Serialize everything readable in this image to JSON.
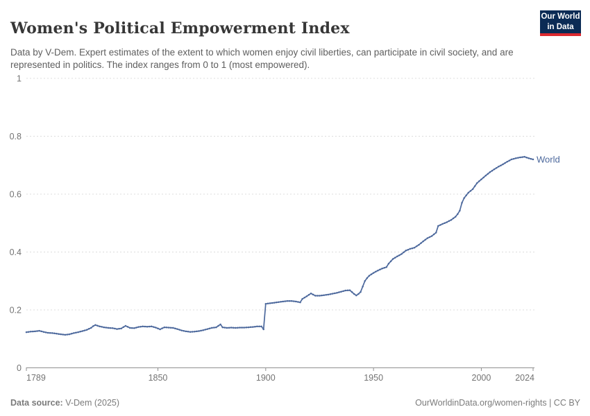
{
  "header": {
    "title": "Women's Political Empowerment Index",
    "subtitle": "Data by V-Dem. Expert estimates of the extent to which women enjoy civil liberties, can participate in civil society, and are represented in politics. The index ranges from 0 to 1 (most empowered).",
    "logo": {
      "line1": "Our World",
      "line2": "in Data"
    }
  },
  "footer": {
    "source_label": "Data source:",
    "source_value": " V-Dem (2025)",
    "credit": "OurWorldinData.org/women-rights | CC BY"
  },
  "chart_data": {
    "type": "line",
    "title": "Women's Political Empowerment Index",
    "xlabel": "",
    "ylabel": "",
    "xlim": [
      1789,
      2024
    ],
    "ylim": [
      0,
      1
    ],
    "x_ticks": [
      1789,
      1850,
      1900,
      1950,
      2000,
      2024
    ],
    "y_ticks": [
      0,
      0.2,
      0.4,
      0.6,
      0.8,
      1
    ],
    "grid": "horizontal-dashed",
    "legend": "end-of-line-label",
    "colors": {
      "line": "#4c689c",
      "grid": "#dcdcdc",
      "axis": "#8f8f8f",
      "tick_label": "#737373"
    },
    "series": [
      {
        "name": "World",
        "color": "#4c689c",
        "points": [
          [
            1789,
            0.123
          ],
          [
            1791,
            0.125
          ],
          [
            1793,
            0.126
          ],
          [
            1795,
            0.128
          ],
          [
            1797,
            0.124
          ],
          [
            1799,
            0.121
          ],
          [
            1801,
            0.12
          ],
          [
            1803,
            0.118
          ],
          [
            1805,
            0.116
          ],
          [
            1807,
            0.114
          ],
          [
            1809,
            0.116
          ],
          [
            1811,
            0.12
          ],
          [
            1813,
            0.123
          ],
          [
            1815,
            0.127
          ],
          [
            1817,
            0.131
          ],
          [
            1819,
            0.138
          ],
          [
            1820,
            0.144
          ],
          [
            1821,
            0.148
          ],
          [
            1823,
            0.143
          ],
          [
            1825,
            0.14
          ],
          [
            1827,
            0.138
          ],
          [
            1829,
            0.137
          ],
          [
            1831,
            0.134
          ],
          [
            1833,
            0.136
          ],
          [
            1835,
            0.145
          ],
          [
            1837,
            0.138
          ],
          [
            1839,
            0.137
          ],
          [
            1841,
            0.141
          ],
          [
            1843,
            0.143
          ],
          [
            1845,
            0.142
          ],
          [
            1847,
            0.143
          ],
          [
            1849,
            0.139
          ],
          [
            1851,
            0.133
          ],
          [
            1853,
            0.14
          ],
          [
            1855,
            0.139
          ],
          [
            1857,
            0.138
          ],
          [
            1859,
            0.134
          ],
          [
            1861,
            0.129
          ],
          [
            1863,
            0.126
          ],
          [
            1865,
            0.124
          ],
          [
            1867,
            0.125
          ],
          [
            1869,
            0.127
          ],
          [
            1871,
            0.13
          ],
          [
            1873,
            0.134
          ],
          [
            1875,
            0.138
          ],
          [
            1877,
            0.14
          ],
          [
            1879,
            0.15
          ],
          [
            1880,
            0.14
          ],
          [
            1882,
            0.138
          ],
          [
            1884,
            0.139
          ],
          [
            1886,
            0.138
          ],
          [
            1888,
            0.139
          ],
          [
            1890,
            0.139
          ],
          [
            1892,
            0.14
          ],
          [
            1894,
            0.141
          ],
          [
            1896,
            0.143
          ],
          [
            1898,
            0.143
          ],
          [
            1899,
            0.133
          ],
          [
            1900,
            0.221
          ],
          [
            1902,
            0.223
          ],
          [
            1904,
            0.225
          ],
          [
            1906,
            0.227
          ],
          [
            1908,
            0.229
          ],
          [
            1910,
            0.231
          ],
          [
            1912,
            0.231
          ],
          [
            1914,
            0.229
          ],
          [
            1916,
            0.226
          ],
          [
            1917,
            0.238
          ],
          [
            1919,
            0.247
          ],
          [
            1921,
            0.257
          ],
          [
            1923,
            0.249
          ],
          [
            1925,
            0.249
          ],
          [
            1927,
            0.251
          ],
          [
            1929,
            0.253
          ],
          [
            1931,
            0.256
          ],
          [
            1933,
            0.259
          ],
          [
            1935,
            0.263
          ],
          [
            1937,
            0.267
          ],
          [
            1939,
            0.268
          ],
          [
            1941,
            0.255
          ],
          [
            1942,
            0.25
          ],
          [
            1943,
            0.255
          ],
          [
            1944,
            0.262
          ],
          [
            1945,
            0.281
          ],
          [
            1946,
            0.3
          ],
          [
            1947,
            0.31
          ],
          [
            1948,
            0.318
          ],
          [
            1950,
            0.328
          ],
          [
            1952,
            0.336
          ],
          [
            1954,
            0.343
          ],
          [
            1956,
            0.348
          ],
          [
            1957,
            0.36
          ],
          [
            1959,
            0.376
          ],
          [
            1961,
            0.385
          ],
          [
            1963,
            0.393
          ],
          [
            1965,
            0.405
          ],
          [
            1967,
            0.411
          ],
          [
            1969,
            0.415
          ],
          [
            1971,
            0.425
          ],
          [
            1973,
            0.437
          ],
          [
            1975,
            0.448
          ],
          [
            1977,
            0.455
          ],
          [
            1979,
            0.467
          ],
          [
            1980,
            0.49
          ],
          [
            1982,
            0.497
          ],
          [
            1984,
            0.503
          ],
          [
            1986,
            0.511
          ],
          [
            1988,
            0.522
          ],
          [
            1989,
            0.531
          ],
          [
            1990,
            0.543
          ],
          [
            1991,
            0.57
          ],
          [
            1992,
            0.586
          ],
          [
            1993,
            0.596
          ],
          [
            1994,
            0.605
          ],
          [
            1996,
            0.617
          ],
          [
            1998,
            0.638
          ],
          [
            2000,
            0.651
          ],
          [
            2002,
            0.664
          ],
          [
            2004,
            0.676
          ],
          [
            2006,
            0.686
          ],
          [
            2008,
            0.695
          ],
          [
            2010,
            0.703
          ],
          [
            2012,
            0.712
          ],
          [
            2014,
            0.72
          ],
          [
            2016,
            0.724
          ],
          [
            2018,
            0.727
          ],
          [
            2020,
            0.729
          ],
          [
            2022,
            0.724
          ],
          [
            2024,
            0.72
          ]
        ]
      }
    ]
  }
}
